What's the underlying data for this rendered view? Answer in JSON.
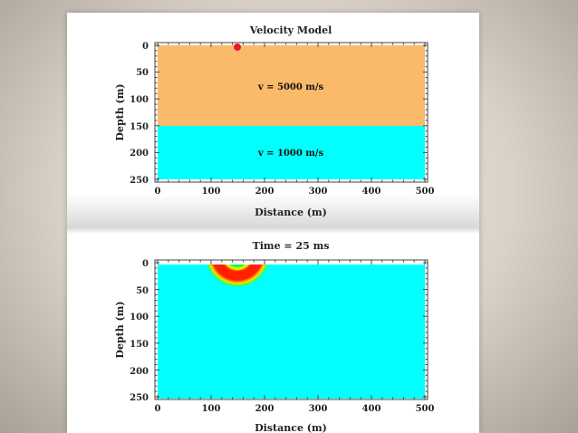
{
  "chart_data": [
    {
      "type": "heatmap",
      "title": "Velocity Model",
      "xlabel": "Distance (m)",
      "ylabel": "Depth (m)",
      "xlim": [
        0,
        500
      ],
      "ylim": [
        0,
        250
      ],
      "xticks": [
        "0",
        "100",
        "200",
        "300",
        "400",
        "500"
      ],
      "yticks": [
        "0",
        "50",
        "100",
        "150",
        "200",
        "250"
      ],
      "layers": [
        {
          "label": "v = 5000 m/s",
          "depth_top": 0,
          "depth_bottom": 150,
          "color": "#fbba6a"
        },
        {
          "label": "v = 1000 m/s",
          "depth_top": 150,
          "depth_bottom": 250,
          "color": "#00ffff"
        }
      ],
      "source": {
        "x": 150,
        "depth": 2,
        "color": "#e8192c"
      }
    },
    {
      "type": "heatmap",
      "title": "Time = 25 ms",
      "xlabel": "Distance (m)",
      "ylabel": "Depth (m)",
      "xlim": [
        0,
        500
      ],
      "ylim": [
        0,
        250
      ],
      "xticks": [
        "0",
        "100",
        "200",
        "300",
        "400",
        "500"
      ],
      "yticks": [
        "0",
        "50",
        "100",
        "150",
        "200",
        "250"
      ],
      "background_color": "#00ffff",
      "wavefront": {
        "x": 150,
        "depth": 5,
        "radius": 55
      }
    }
  ]
}
